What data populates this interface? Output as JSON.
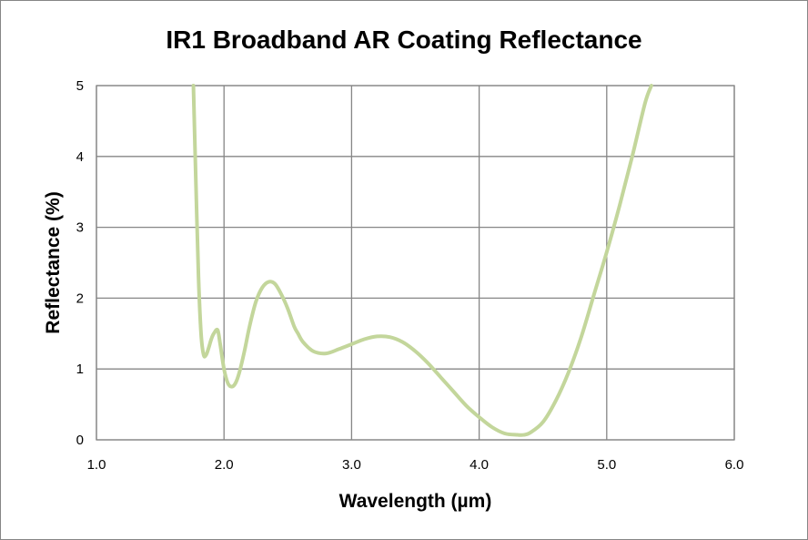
{
  "chart_data": {
    "type": "line",
    "title": "IR1 Broadband AR Coating Reflectance",
    "xlabel": "Wavelength (µm)",
    "ylabel": "Reflectance (%)",
    "xlim": [
      1.0,
      6.0
    ],
    "ylim": [
      0,
      5
    ],
    "x_ticks": [
      "1.0",
      "2.0",
      "3.0",
      "4.0",
      "5.0",
      "6.0"
    ],
    "y_ticks": [
      "0",
      "1",
      "2",
      "3",
      "4",
      "5"
    ],
    "grid": true,
    "legend": "none",
    "series": [
      {
        "color": "#c3d69b",
        "x": [
          1.76,
          1.78,
          1.8,
          1.82,
          1.84,
          1.86,
          1.88,
          1.9,
          1.92,
          1.95,
          1.97,
          2.0,
          2.03,
          2.06,
          2.09,
          2.12,
          2.16,
          2.2,
          2.25,
          2.3,
          2.35,
          2.4,
          2.45,
          2.5,
          2.55,
          2.58,
          2.62,
          2.7,
          2.8,
          2.9,
          3.0,
          3.1,
          3.2,
          3.3,
          3.4,
          3.5,
          3.6,
          3.7,
          3.8,
          3.9,
          4.0,
          4.1,
          4.2,
          4.3,
          4.35,
          4.4,
          4.5,
          4.6,
          4.7,
          4.8,
          4.9,
          5.0,
          5.1,
          5.2,
          5.3,
          5.35
        ],
        "y": [
          5.0,
          3.6,
          2.3,
          1.5,
          1.2,
          1.2,
          1.3,
          1.42,
          1.5,
          1.55,
          1.35,
          1.0,
          0.8,
          0.75,
          0.8,
          0.95,
          1.25,
          1.6,
          1.95,
          2.15,
          2.23,
          2.2,
          2.05,
          1.85,
          1.6,
          1.5,
          1.38,
          1.25,
          1.22,
          1.28,
          1.35,
          1.42,
          1.46,
          1.45,
          1.38,
          1.25,
          1.08,
          0.88,
          0.68,
          0.48,
          0.32,
          0.18,
          0.09,
          0.07,
          0.07,
          0.1,
          0.25,
          0.55,
          0.95,
          1.45,
          2.05,
          2.65,
          3.3,
          4.0,
          4.75,
          5.0
        ]
      }
    ]
  }
}
